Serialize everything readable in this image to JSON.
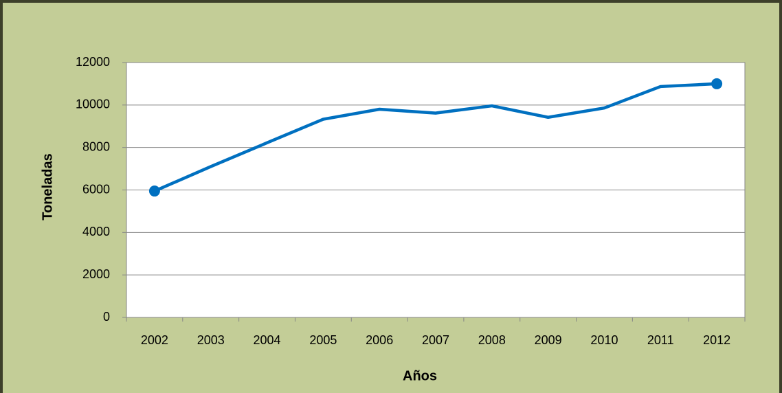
{
  "chart_data": {
    "type": "line",
    "x_label": "Años",
    "y_label": "Toneladas",
    "categories": [
      "2002",
      "2003",
      "2004",
      "2005",
      "2006",
      "2007",
      "2008",
      "2009",
      "2010",
      "2011",
      "2012"
    ],
    "series": [
      {
        "name": "Toneladas",
        "color": "#0070c0",
        "values": [
          5950,
          7100,
          8220,
          9330,
          9800,
          9620,
          9960,
          9420,
          9860,
          10870,
          11000
        ]
      }
    ],
    "markers": "endpoints",
    "ylim": [
      0,
      12000
    ],
    "yticks": [
      0,
      2000,
      4000,
      6000,
      8000,
      10000,
      12000
    ],
    "grid": true
  }
}
